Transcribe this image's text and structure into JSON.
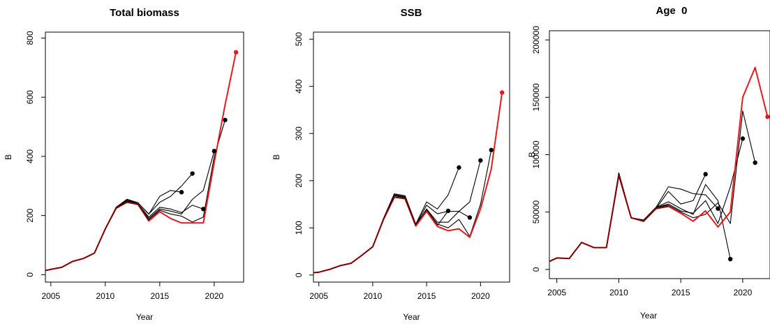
{
  "chart_data": [
    {
      "type": "line",
      "title": "Total biomass",
      "xlabel": "Year",
      "ylabel": "B",
      "xlim": [
        2004.5,
        2022.7
      ],
      "ylim": [
        -25,
        820
      ],
      "xticks": [
        2005,
        2010,
        2015,
        2020
      ],
      "yticks": [
        0,
        200,
        400,
        600,
        800
      ],
      "grid": false,
      "colors": {
        "retro": "#000000",
        "final": "#e8191c",
        "overlap": "#7a0000"
      },
      "series": [
        {
          "role": "retro",
          "x": [
            2004,
            2005,
            2006,
            2007,
            2008,
            2009,
            2010,
            2011,
            2012,
            2013,
            2014,
            2015,
            2016,
            2017
          ],
          "y": [
            10,
            18,
            25,
            45,
            55,
            73,
            155,
            228,
            255,
            243,
            205,
            265,
            285,
            279
          ],
          "endpoint": true
        },
        {
          "role": "retro",
          "x": [
            2004,
            2005,
            2006,
            2007,
            2008,
            2009,
            2010,
            2011,
            2012,
            2013,
            2014,
            2015,
            2016,
            2017,
            2018
          ],
          "y": [
            10,
            18,
            25,
            45,
            55,
            73,
            155,
            228,
            255,
            243,
            205,
            245,
            265,
            300,
            342
          ],
          "endpoint": true
        },
        {
          "role": "retro",
          "x": [
            2004,
            2005,
            2006,
            2007,
            2008,
            2009,
            2010,
            2011,
            2012,
            2013,
            2014,
            2015,
            2016,
            2017,
            2018,
            2019
          ],
          "y": [
            10,
            18,
            25,
            45,
            55,
            73,
            155,
            228,
            253,
            240,
            195,
            228,
            222,
            210,
            235,
            222
          ],
          "endpoint": true
        },
        {
          "role": "retro",
          "x": [
            2004,
            2005,
            2006,
            2007,
            2008,
            2009,
            2010,
            2011,
            2012,
            2013,
            2014,
            2015,
            2016,
            2017,
            2018,
            2019,
            2020
          ],
          "y": [
            10,
            18,
            25,
            45,
            55,
            73,
            155,
            228,
            250,
            238,
            190,
            222,
            215,
            205,
            255,
            285,
            418
          ],
          "endpoint": true
        },
        {
          "role": "retro",
          "x": [
            2004,
            2005,
            2006,
            2007,
            2008,
            2009,
            2010,
            2011,
            2012,
            2013,
            2014,
            2015,
            2016,
            2017,
            2018,
            2019,
            2020,
            2021
          ],
          "y": [
            10,
            18,
            25,
            45,
            55,
            73,
            155,
            228,
            248,
            236,
            186,
            218,
            205,
            198,
            178,
            195,
            400,
            523
          ],
          "endpoint": true
        },
        {
          "role": "final",
          "x": [
            2004,
            2005,
            2006,
            2007,
            2008,
            2009,
            2010,
            2011,
            2012,
            2013,
            2014,
            2015,
            2016,
            2017,
            2018,
            2019,
            2020,
            2021,
            2022
          ],
          "y": [
            10,
            18,
            25,
            45,
            55,
            73,
            155,
            225,
            245,
            238,
            182,
            213,
            190,
            175,
            175,
            175,
            380,
            575,
            752
          ],
          "endpoint": true
        }
      ]
    },
    {
      "type": "line",
      "title": "SSB",
      "xlabel": "Year",
      "ylabel": "B",
      "xlim": [
        2004.5,
        2022.7
      ],
      "ylim": [
        -15,
        515
      ],
      "xticks": [
        2005,
        2010,
        2015,
        2020
      ],
      "yticks": [
        0,
        100,
        200,
        300,
        400,
        500
      ],
      "grid": false,
      "colors": {
        "retro": "#000000",
        "final": "#e8191c",
        "overlap": "#7a0000"
      },
      "series": [
        {
          "role": "retro",
          "x": [
            2004,
            2005,
            2006,
            2007,
            2008,
            2009,
            2010,
            2011,
            2012,
            2013,
            2014,
            2015,
            2016,
            2017
          ],
          "y": [
            4,
            6,
            12,
            20,
            25,
            42,
            60,
            120,
            172,
            168,
            105,
            140,
            105,
            136
          ],
          "endpoint": true
        },
        {
          "role": "retro",
          "x": [
            2004,
            2005,
            2006,
            2007,
            2008,
            2009,
            2010,
            2011,
            2012,
            2013,
            2014,
            2015,
            2016,
            2017,
            2018
          ],
          "y": [
            4,
            6,
            12,
            20,
            25,
            42,
            60,
            120,
            172,
            168,
            108,
            155,
            140,
            170,
            228
          ],
          "endpoint": true
        },
        {
          "role": "retro",
          "x": [
            2004,
            2005,
            2006,
            2007,
            2008,
            2009,
            2010,
            2011,
            2012,
            2013,
            2014,
            2015,
            2016,
            2017,
            2018,
            2019
          ],
          "y": [
            4,
            6,
            12,
            20,
            25,
            42,
            60,
            120,
            170,
            166,
            106,
            148,
            130,
            135,
            135,
            122
          ],
          "endpoint": true
        },
        {
          "role": "retro",
          "x": [
            2004,
            2005,
            2006,
            2007,
            2008,
            2009,
            2010,
            2011,
            2012,
            2013,
            2014,
            2015,
            2016,
            2017,
            2018,
            2019,
            2020
          ],
          "y": [
            4,
            6,
            12,
            20,
            25,
            42,
            60,
            120,
            169,
            165,
            106,
            140,
            112,
            112,
            135,
            155,
            243
          ],
          "endpoint": true
        },
        {
          "role": "retro",
          "x": [
            2004,
            2005,
            2006,
            2007,
            2008,
            2009,
            2010,
            2011,
            2012,
            2013,
            2014,
            2015,
            2016,
            2017,
            2018,
            2019,
            2020,
            2021
          ],
          "y": [
            4,
            6,
            12,
            20,
            25,
            42,
            60,
            120,
            168,
            164,
            106,
            138,
            108,
            100,
            118,
            82,
            150,
            265
          ],
          "endpoint": true
        },
        {
          "role": "final",
          "x": [
            2004,
            2005,
            2006,
            2007,
            2008,
            2009,
            2010,
            2011,
            2012,
            2013,
            2014,
            2015,
            2016,
            2017,
            2018,
            2019,
            2020,
            2021,
            2022
          ],
          "y": [
            4,
            6,
            12,
            20,
            25,
            42,
            60,
            118,
            165,
            162,
            104,
            135,
            103,
            94,
            98,
            80,
            140,
            225,
            387
          ],
          "endpoint": true
        }
      ]
    },
    {
      "type": "line",
      "title": "Age  0",
      "xlabel": "Year",
      "ylabel": "B",
      "xlim": [
        2004.4,
        2022.2
      ],
      "ylim": [
        -8000,
        208000
      ],
      "xticks": [
        2005,
        2010,
        2015,
        2020
      ],
      "yticks": [
        0,
        50000,
        100000,
        150000,
        200000
      ],
      "grid": false,
      "colors": {
        "retro": "#000000",
        "final": "#e8191c",
        "overlap": "#7a0000"
      },
      "series": [
        {
          "role": "retro",
          "x": [
            2004,
            2005,
            2006,
            2007,
            2008,
            2009,
            2010,
            2011,
            2012,
            2013,
            2014,
            2015,
            2016,
            2017
          ],
          "y": [
            5000,
            10000,
            9500,
            23500,
            19000,
            19000,
            84000,
            45000,
            43000,
            53000,
            68000,
            57000,
            60000,
            83000
          ],
          "endpoint": true
        },
        {
          "role": "retro",
          "x": [
            2004,
            2005,
            2006,
            2007,
            2008,
            2009,
            2010,
            2011,
            2012,
            2013,
            2014,
            2015,
            2016,
            2017,
            2018
          ],
          "y": [
            5000,
            10000,
            9500,
            23500,
            19000,
            19000,
            84000,
            45000,
            43000,
            54000,
            72000,
            70000,
            66000,
            65000,
            53000
          ],
          "endpoint": true
        },
        {
          "role": "retro",
          "x": [
            2004,
            2005,
            2006,
            2007,
            2008,
            2009,
            2010,
            2011,
            2012,
            2013,
            2014,
            2015,
            2016,
            2017,
            2018,
            2019
          ],
          "y": [
            5000,
            10000,
            9500,
            23500,
            19000,
            19000,
            84000,
            45000,
            43000,
            54000,
            59000,
            53000,
            48000,
            74000,
            60000,
            9000
          ],
          "endpoint": true
        },
        {
          "role": "retro",
          "x": [
            2004,
            2005,
            2006,
            2007,
            2008,
            2009,
            2010,
            2011,
            2012,
            2013,
            2014,
            2015,
            2016,
            2017,
            2018,
            2019,
            2020
          ],
          "y": [
            5000,
            10000,
            9500,
            23500,
            19000,
            19000,
            84000,
            45000,
            43000,
            54000,
            57000,
            51000,
            49000,
            60000,
            40000,
            72000,
            114000
          ],
          "endpoint": true
        },
        {
          "role": "retro",
          "x": [
            2004,
            2005,
            2006,
            2007,
            2008,
            2009,
            2010,
            2011,
            2012,
            2013,
            2014,
            2015,
            2016,
            2017,
            2018,
            2019,
            2020,
            2021
          ],
          "y": [
            5000,
            10000,
            9500,
            23500,
            19000,
            19000,
            84000,
            45000,
            43000,
            54000,
            56000,
            50000,
            45000,
            48000,
            58000,
            40000,
            138000,
            93000
          ],
          "endpoint": true
        },
        {
          "role": "final",
          "x": [
            2004,
            2005,
            2006,
            2007,
            2008,
            2009,
            2010,
            2011,
            2012,
            2013,
            2014,
            2015,
            2016,
            2017,
            2018,
            2019,
            2020,
            2021,
            2022
          ],
          "y": [
            5000,
            10000,
            9500,
            23500,
            19000,
            19000,
            82000,
            45000,
            42000,
            53000,
            55000,
            49000,
            42000,
            51000,
            37000,
            50000,
            150000,
            176000,
            133000
          ],
          "endpoint": true
        }
      ]
    }
  ]
}
